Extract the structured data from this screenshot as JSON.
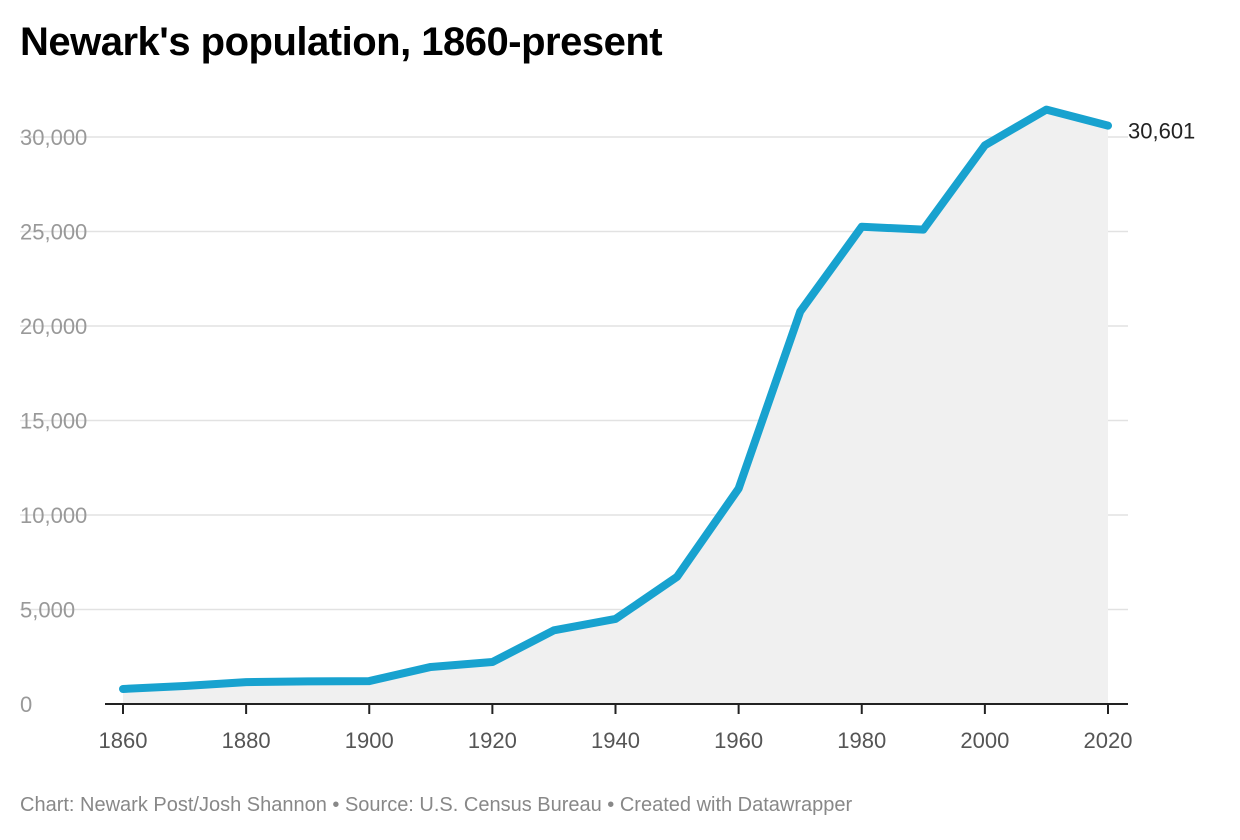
{
  "chart_data": {
    "type": "area",
    "title": "Newark's population, 1860-present",
    "xlabel": "",
    "ylabel": "",
    "x": [
      1860,
      1870,
      1880,
      1890,
      1900,
      1910,
      1920,
      1930,
      1940,
      1950,
      1960,
      1970,
      1980,
      1990,
      2000,
      2010,
      2020
    ],
    "series": [
      {
        "values": [
          794,
          950,
          1160,
          1200,
          1213,
          1960,
          2220,
          3900,
          4500,
          6730,
          11400,
          20760,
          25250,
          25100,
          29560,
          31450,
          30601
        ]
      }
    ],
    "x_ticks": [
      "1860",
      "1880",
      "1900",
      "1920",
      "1940",
      "1960",
      "1980",
      "2000",
      "2020"
    ],
    "y_ticks": [
      "0",
      "5,000",
      "10,000",
      "15,000",
      "20,000",
      "25,000",
      "30,000"
    ],
    "xlim": [
      1860,
      2020
    ],
    "ylim": [
      0,
      30000
    ],
    "grid": true,
    "end_label": "30,601",
    "colors": {
      "line": "#18a2cf",
      "area": "#f0f0f0",
      "grid": "#e2e2e2"
    }
  },
  "footer": "Chart: Newark Post/Josh Shannon • Source: U.S. Census Bureau • Created with Datawrapper"
}
